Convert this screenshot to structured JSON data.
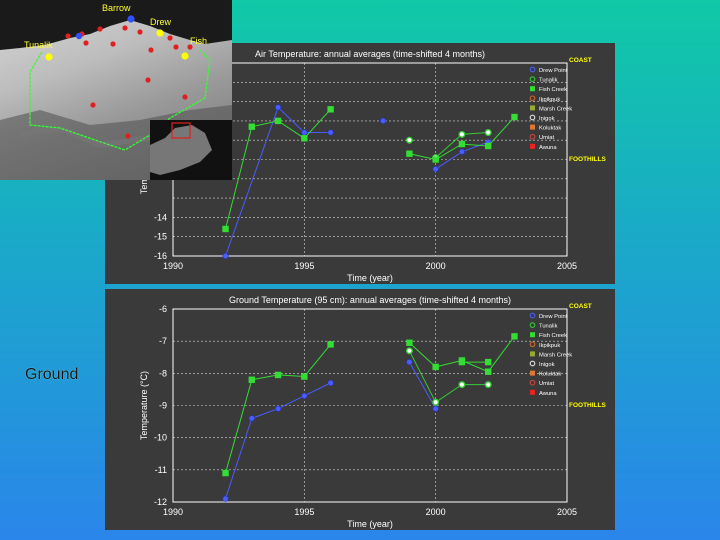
{
  "map": {
    "labels": {
      "barrow": "Barrow",
      "drew": "Drew",
      "tunalik": "Tunalik",
      "fish": "Fish"
    }
  },
  "side_label": "Ground",
  "colors": {
    "drew": "#4a5cff",
    "fish": "#33dd33",
    "tunalik_marker": "#33cc33",
    "text": "#ffffff",
    "zone": "#ffff00",
    "panel": "#3a3a3a"
  },
  "chart_data": [
    {
      "id": "air",
      "type": "line",
      "title": "Air Temperature: annual averages (time-shifted 4 months)",
      "xlabel": "Time (year)",
      "ylabel": "Temperature (°C)",
      "xlim": [
        1990,
        2005
      ],
      "ylim": [
        -16,
        -6
      ],
      "xticks": [
        1990,
        1995,
        2000,
        2005
      ],
      "yticks": [
        -16,
        -15,
        -14
      ],
      "zone_labels": {
        "top": "COAST",
        "bottom": "FOOTHILLS"
      },
      "legend": [
        "Drew Point",
        "Tunalik",
        "Fish Creek",
        "Ikpikpuk",
        "Marsh Creek",
        "Inigok",
        "Koluktak",
        "Umiat",
        "Awuna"
      ],
      "series": [
        {
          "name": "Drew Point",
          "marker": "circle",
          "color": "#4a5cff",
          "segments": [
            [
              [
                1992,
                -16
              ],
              [
                1994,
                -8.3
              ],
              [
                1995,
                -9.6
              ],
              [
                1996,
                -9.6
              ]
            ],
            [
              [
                1998,
                -9
              ]
            ],
            [
              [
                2000,
                -11.5
              ],
              [
                2001,
                -10.6
              ],
              [
                2002,
                -10.1
              ]
            ]
          ]
        },
        {
          "name": "Tunalik",
          "marker": "ring",
          "color": "#33cc33",
          "segments": [
            [
              [
                1999,
                -10
              ]
            ],
            [
              [
                2000,
                -10.9
              ],
              [
                2001,
                -9.7
              ],
              [
                2002,
                -9.6
              ]
            ]
          ]
        },
        {
          "name": "Fish Creek",
          "marker": "square",
          "color": "#33dd33",
          "segments": [
            [
              [
                1992,
                -14.6
              ],
              [
                1993,
                -9.3
              ],
              [
                1994,
                -9.0
              ],
              [
                1995,
                -9.9
              ],
              [
                1996,
                -8.4
              ]
            ],
            [
              [
                1999,
                -10.7
              ],
              [
                2000,
                -11.0
              ],
              [
                2001,
                -10.2
              ],
              [
                2002,
                -10.3
              ],
              [
                2003,
                -8.8
              ]
            ]
          ]
        }
      ]
    },
    {
      "id": "ground",
      "type": "line",
      "title": "Ground Temperature (95 cm): annual averages (time-shifted 4 months)",
      "xlabel": "Time (year)",
      "ylabel": "Temperature (°C)",
      "xlim": [
        1990,
        2005
      ],
      "ylim": [
        -12,
        -6
      ],
      "xticks": [
        1990,
        1995,
        2000,
        2005
      ],
      "yticks": [
        -12,
        -11,
        -10,
        -9,
        -8,
        -7,
        -6
      ],
      "zone_labels": {
        "top": "COAST",
        "bottom": "FOOTHILLS"
      },
      "legend": [
        "Drew Point",
        "Tunalik",
        "Fish Creek",
        "Ikpikpuk",
        "Marsh Creek",
        "Inigok",
        "Koluktak",
        "Umiat",
        "Awuna"
      ],
      "series": [
        {
          "name": "Drew Point",
          "marker": "circle",
          "color": "#4a5cff",
          "segments": [
            [
              [
                1992,
                -11.9
              ],
              [
                1993,
                -9.4
              ],
              [
                1994,
                -9.1
              ],
              [
                1995,
                -8.7
              ],
              [
                1996,
                -8.3
              ]
            ],
            [
              [
                1999,
                -7.65
              ],
              [
                2000,
                -9.1
              ]
            ]
          ]
        },
        {
          "name": "Tunalik",
          "marker": "ring",
          "color": "#33cc33",
          "segments": [
            [
              [
                1999,
                -7.3
              ],
              [
                2000,
                -8.9
              ],
              [
                2001,
                -8.35
              ],
              [
                2002,
                -8.35
              ]
            ]
          ]
        },
        {
          "name": "Fish Creek",
          "marker": "square",
          "color": "#33dd33",
          "segments": [
            [
              [
                1992,
                -11.1
              ],
              [
                1993,
                -8.2
              ],
              [
                1994,
                -8.05
              ],
              [
                1995,
                -8.1
              ],
              [
                1996,
                -7.1
              ]
            ],
            [
              [
                1999,
                -7.05
              ],
              [
                2000,
                -7.8
              ],
              [
                2001,
                -7.6
              ],
              [
                2002,
                -7.95
              ],
              [
                2003,
                -6.85
              ]
            ]
          ]
        },
        {
          "name": "Fish Creek",
          "marker": "square",
          "color": "#33dd33",
          "segments": [
            [
              [
                2001,
                -7.65
              ],
              [
                2002,
                -7.65
              ]
            ]
          ]
        }
      ]
    }
  ]
}
